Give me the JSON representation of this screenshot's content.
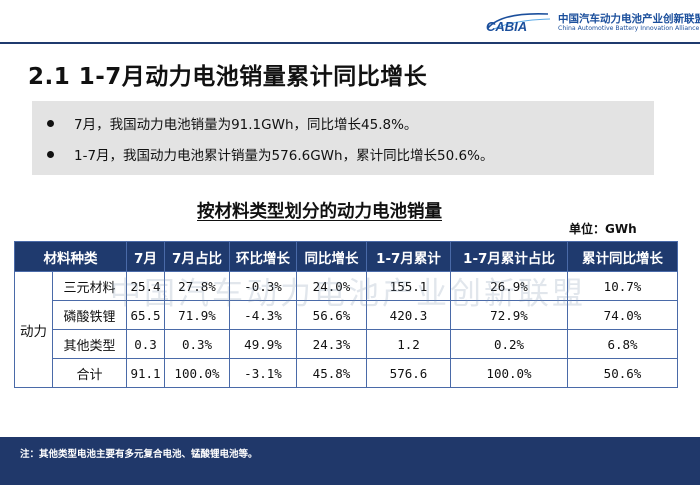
{
  "header": {
    "logo_mark": "CABIA",
    "logo_cn": "中国汽车动力电池产业创新联盟",
    "logo_en": "China Automotive Battery Innovation Alliance"
  },
  "title": "2.1 1-7月动力电池销量累计同比增长",
  "summary": {
    "bullets": [
      "7月，我国动力电池销量为91.1GWh，同比增长45.8%。",
      "1-7月，我国动力电池累计销量为576.6GWh，累计同比增长50.6%。"
    ]
  },
  "table": {
    "title": "按材料类型划分的动力电池销量",
    "unit": "单位：GWh",
    "watermark": "中国汽车动力电池产业创新联盟",
    "headers": [
      "材料种类",
      "7月",
      "7月占比",
      "环比增长",
      "同比增长",
      "1-7月累计",
      "1-7月累计占比",
      "累计同比增长"
    ],
    "group_label": "动力",
    "rows": [
      [
        "三元材料",
        "25.4",
        "27.8%",
        "-0.3%",
        "24.0%",
        "155.1",
        "26.9%",
        "10.7%"
      ],
      [
        "磷酸铁锂",
        "65.5",
        "71.9%",
        "-4.3%",
        "56.6%",
        "420.3",
        "72.9%",
        "74.0%"
      ],
      [
        "其他类型",
        "0.3",
        "0.3%",
        "49.9%",
        "24.3%",
        "1.2",
        "0.2%",
        "6.8%"
      ],
      [
        "合计",
        "91.1",
        "100.0%",
        "-3.1%",
        "45.8%",
        "576.6",
        "100.0%",
        "50.6%"
      ]
    ]
  },
  "footer": {
    "note": "注：其他类型电池主要有多元复合电池、锰酸锂电池等。"
  },
  "colors": {
    "header_blue": "#1f3a6e",
    "summary_gray": "#e3e3e3",
    "logo_blue": "#1b4f9c"
  }
}
